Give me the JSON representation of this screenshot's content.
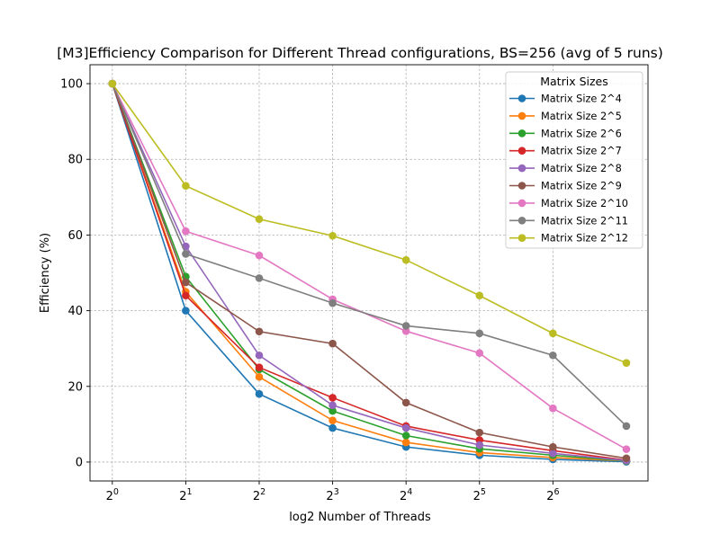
{
  "chart_data": {
    "type": "line",
    "title": "[M3]Efficiency Comparison for Different Thread configurations, BS=256 (avg of 5 runs)",
    "xlabel": "log2 Number of Threads",
    "ylabel": "Efficiency (%)",
    "x_scale": "log2",
    "x": [
      1,
      2,
      4,
      8,
      16,
      32,
      64,
      128
    ],
    "x_tick_values": [
      1,
      2,
      4,
      8,
      16,
      32,
      64
    ],
    "x_tick_labels": [
      {
        "base": "2",
        "exp": "0"
      },
      {
        "base": "2",
        "exp": "1"
      },
      {
        "base": "2",
        "exp": "2"
      },
      {
        "base": "2",
        "exp": "3"
      },
      {
        "base": "2",
        "exp": "4"
      },
      {
        "base": "2",
        "exp": "5"
      },
      {
        "base": "2",
        "exp": "6"
      }
    ],
    "xlim": [
      0.81,
      157
    ],
    "ylim": [
      -5,
      105
    ],
    "y_ticks": [
      0,
      20,
      40,
      60,
      80,
      100
    ],
    "y_tick_labels": [
      "0",
      "20",
      "40",
      "60",
      "80",
      "100"
    ],
    "grid": true,
    "legend": {
      "title": "Matrix Sizes",
      "position": "top-right"
    },
    "series": [
      {
        "name": "Matrix Size 2^4",
        "color": "#1f77b4",
        "values": [
          100,
          40,
          18,
          9,
          4,
          1.8,
          0.7,
          0.1
        ]
      },
      {
        "name": "Matrix Size 2^5",
        "color": "#ff7f0e",
        "values": [
          100,
          45,
          22.5,
          11,
          5.2,
          2.5,
          1.2,
          0.3
        ]
      },
      {
        "name": "Matrix Size 2^6",
        "color": "#2ca02c",
        "values": [
          100,
          49,
          24.5,
          13.5,
          7,
          3.5,
          1.8,
          0.3
        ]
      },
      {
        "name": "Matrix Size 2^7",
        "color": "#d62728",
        "values": [
          100,
          44,
          25,
          17,
          9.5,
          5.8,
          3,
          0.5
        ]
      },
      {
        "name": "Matrix Size 2^8",
        "color": "#9467bd",
        "values": [
          100,
          57,
          28.2,
          15,
          9,
          4.5,
          2.3,
          0.4
        ]
      },
      {
        "name": "Matrix Size 2^9",
        "color": "#8c564b",
        "values": [
          100,
          47.5,
          34.5,
          31.3,
          15.7,
          7.8,
          4,
          1
        ]
      },
      {
        "name": "Matrix Size 2^10",
        "color": "#e377c2",
        "values": [
          100,
          61,
          54.6,
          43,
          34.6,
          28.8,
          14.2,
          3.4
        ]
      },
      {
        "name": "Matrix Size 2^11",
        "color": "#7f7f7f",
        "values": [
          100,
          55,
          48.6,
          42,
          36,
          34,
          28.2,
          9.5
        ]
      },
      {
        "name": "Matrix Size 2^12",
        "color": "#bcbd22",
        "values": [
          100,
          73,
          64.2,
          59.8,
          53.4,
          44,
          34,
          26.2
        ]
      }
    ]
  }
}
